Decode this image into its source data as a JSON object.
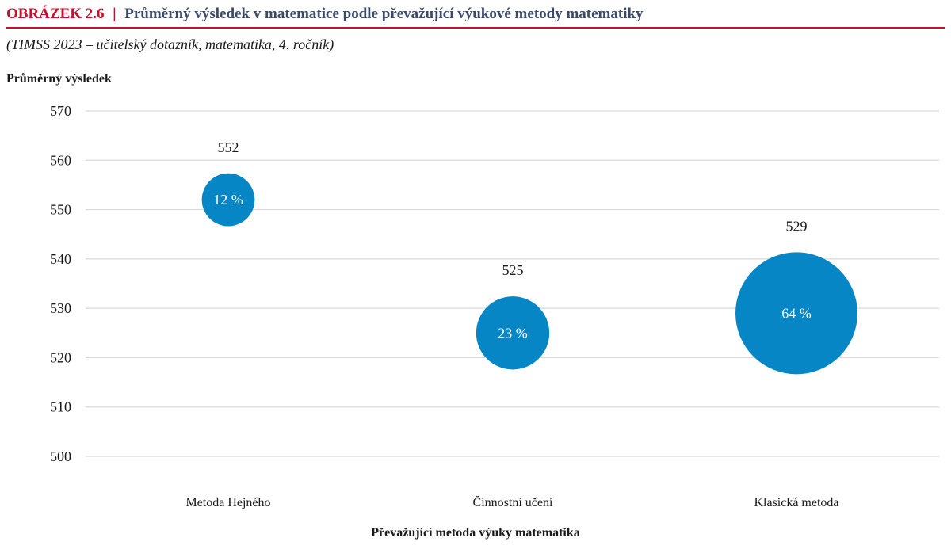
{
  "figure": {
    "label": "OBRÁZEK 2.6",
    "separator": "|",
    "title": "Průměrný výsledek v matematice podle převažující výukové metody matematiky",
    "subtitle": "(TIMSS 2023 – učitelský dotazník, matematika, 4. ročník)"
  },
  "chart_data": {
    "type": "scatter",
    "title": "Průměrný výsledek v matematice podle převažující výukové metody matematiky",
    "ylabel": "Průměrný výsledek",
    "xlabel": "Převažující metoda výuky matematika",
    "ylim": [
      500,
      570
    ],
    "yticks": [
      500,
      510,
      520,
      530,
      540,
      550,
      560,
      570
    ],
    "grid": true,
    "categories": [
      "Metoda Hejného",
      "Činnostní učení",
      "Klasická metoda"
    ],
    "values": [
      552,
      525,
      529
    ],
    "shares": [
      12,
      23,
      64
    ],
    "share_labels": [
      "12 %",
      "23 %",
      "64 %"
    ],
    "bubble_color": "#0786c5",
    "grid_color": "#d9d9d9"
  }
}
